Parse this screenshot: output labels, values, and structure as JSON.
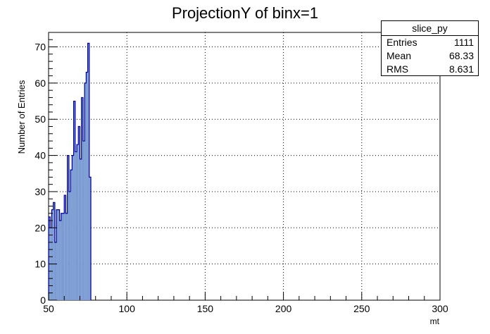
{
  "chart_data": {
    "type": "bar",
    "title": "ProjectionY of binx=1",
    "xlabel": "mt",
    "ylabel": "Number of Entries",
    "xlim": [
      50,
      300
    ],
    "ylim": [
      0,
      74
    ],
    "grid": true,
    "fill_color": "#7b9bd3",
    "line_color": "#000099",
    "x_ticks": [
      50,
      100,
      150,
      200,
      250,
      300
    ],
    "y_ticks": [
      0,
      10,
      20,
      30,
      40,
      50,
      60,
      70
    ],
    "bin_edges_start": 50,
    "bin_width": 1,
    "values": [
      23,
      20,
      25,
      27,
      16,
      25,
      25,
      22,
      24,
      24,
      29,
      24,
      40,
      30,
      36,
      40,
      55,
      41,
      43,
      48,
      39,
      56,
      44,
      60,
      63,
      71,
      34
    ],
    "legend": "top-right"
  },
  "stats": {
    "name": "slice_py",
    "rows": [
      {
        "key": "Entries",
        "value": "1111"
      },
      {
        "key": "Mean",
        "value": "68.33"
      },
      {
        "key": "RMS",
        "value": "8.631"
      }
    ]
  }
}
